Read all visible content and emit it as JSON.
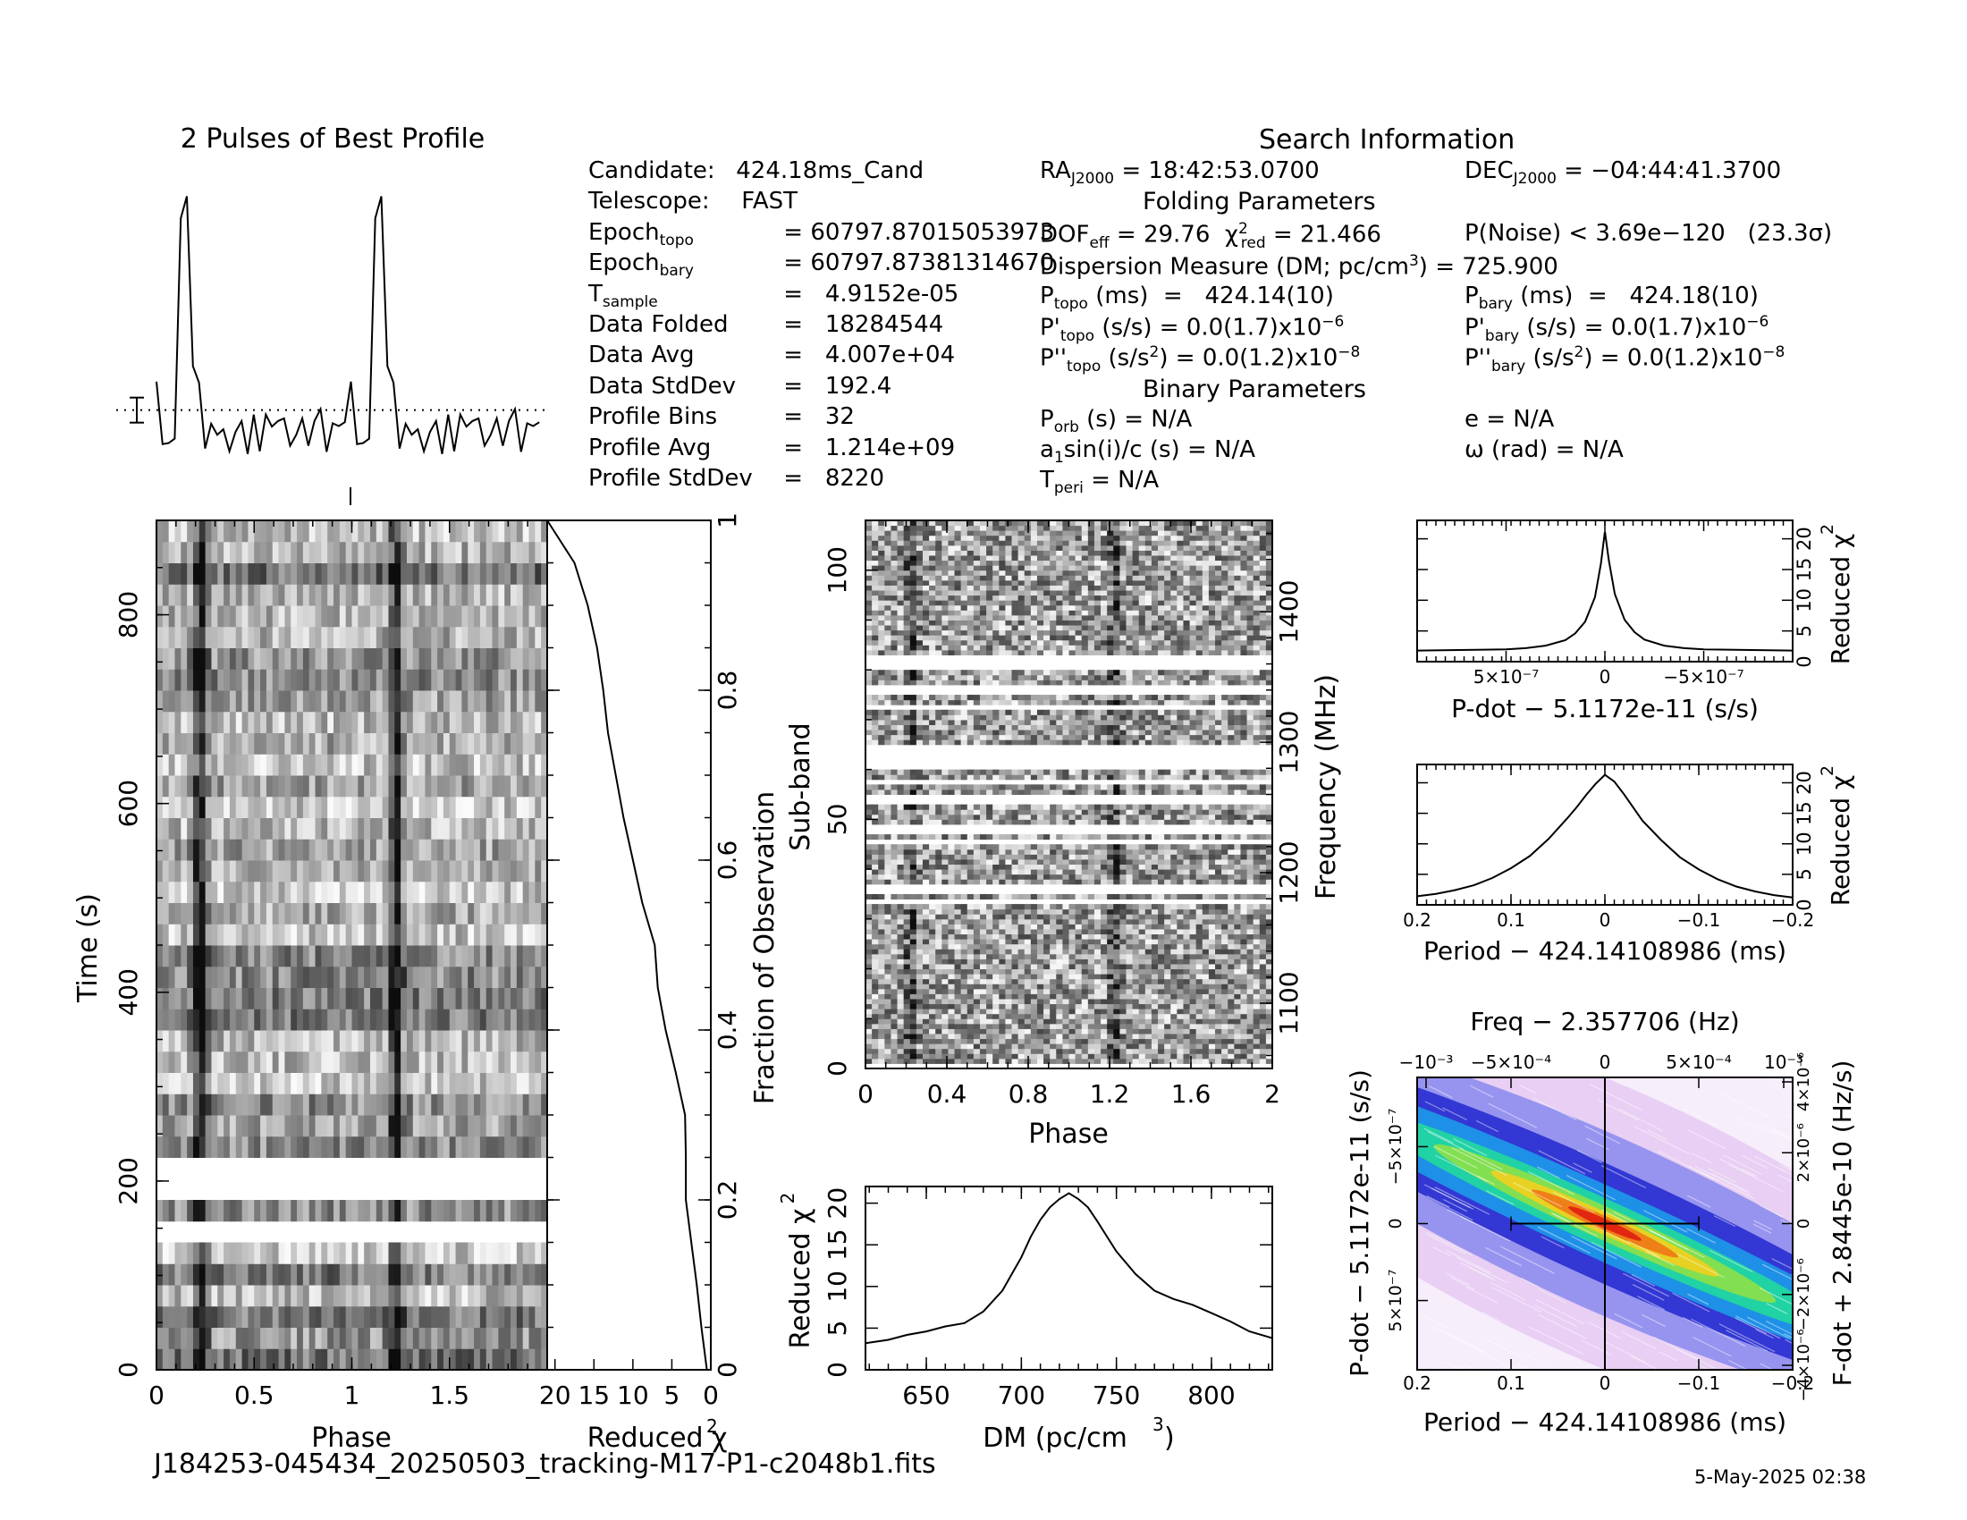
{
  "figure": {
    "footer_file": "J184253-045434_20250503_tracking-M17-P1-c2048b1.fits",
    "footer_date": "5-May-2025 02:38"
  },
  "info": {
    "search_title": "Search Information",
    "folding_title": "Folding Parameters",
    "binary_title": "Binary Parameters",
    "col1": [
      {
        "label": "Candidate:",
        "value": "424.18ms_Cand"
      },
      {
        "label": "Telescope:",
        "value": "FAST"
      },
      {
        "label": "Epoch",
        "sub": "topo",
        "value": "= 60797.87015053973"
      },
      {
        "label": "Epoch",
        "sub": "bary",
        "value": "= 60797.87381314670"
      },
      {
        "label": "T",
        "sub": "sample",
        "value": "=   4.9152e-05"
      },
      {
        "label": "Data Folded",
        "value": "=   18284544"
      },
      {
        "label": "Data Avg",
        "value": "=   4.007e+04"
      },
      {
        "label": "Data StdDev",
        "value": "=   192.4"
      },
      {
        "label": "Profile Bins",
        "value": "=   32"
      },
      {
        "label": "Profile Avg",
        "value": "=   1.214e+09"
      },
      {
        "label": "Profile StdDev",
        "value": "=   8220"
      }
    ],
    "ra": "= 18:42:53.0700",
    "dec": "= −04:44:41.3700",
    "dof_eff": "= 29.76",
    "chi2_red": "= 21.466",
    "p_noise": "P(Noise) < 3.69e−120   (23.3σ)",
    "dm_line": "Dispersion Measure (DM; pc/cm",
    "dm_value": ") = 725.900",
    "p_topo": "(ms)  =   424.14(10)",
    "p_bary": "(ms)  =   424.18(10)",
    "pd_topo": "(s/s) = 0.0(1.7)x10",
    "pd_bary": "(s/s) = 0.0(1.7)x10",
    "pdd_topo": "= 0.0(1.2)x10",
    "pdd_bary": "= 0.0(1.2)x10",
    "exp_pd": "−6",
    "exp_pdd": "−8",
    "p_orb": "(s) = N/A",
    "a1sini": "sin(i)/c (s) = N/A",
    "t_peri": "= N/A",
    "ecc": "e = N/A",
    "omega": "ω (rad) = N/A"
  },
  "chart_data": [
    {
      "id": "profile",
      "type": "line",
      "title": "2 Pulses of Best Profile",
      "x": [
        0.0,
        0.03125,
        0.0625,
        0.09375,
        0.125,
        0.15625,
        0.1875,
        0.21875,
        0.25,
        0.28125,
        0.3125,
        0.34375,
        0.375,
        0.40625,
        0.4375,
        0.46875,
        0.5,
        0.53125,
        0.5625,
        0.59375,
        0.625,
        0.65625,
        0.6875,
        0.71875,
        0.75,
        0.78125,
        0.8125,
        0.84375,
        0.875,
        0.90625,
        0.9375,
        0.96875
      ],
      "values": [
        1.22,
        0.08,
        0.1,
        0.18,
        4.2,
        4.6,
        1.5,
        1.2,
        0.0,
        0.45,
        0.25,
        0.35,
        -0.05,
        0.3,
        0.5,
        -0.1,
        0.62,
        -0.05,
        0.62,
        0.4,
        0.5,
        0.55,
        0.05,
        0.25,
        0.55,
        0.05,
        0.5,
        0.72,
        -0.06,
        0.46,
        0.41,
        0.48
      ],
      "mean_level": 0.7,
      "ylim": [
        -0.3,
        5.0
      ]
    },
    {
      "id": "time_phase",
      "type": "heatmap",
      "xlabel": "Phase",
      "ylabel": "Time (s)",
      "y2label": "Fraction of Observation",
      "xticks": [
        "0",
        "0.5",
        "1",
        "1.5"
      ],
      "yticks": [
        "0",
        "200",
        "400",
        "600",
        "800"
      ],
      "y2ticks": [
        "0",
        "0.2",
        "0.4",
        "0.6",
        "0.8",
        "1"
      ],
      "xlim": [
        0,
        2
      ],
      "ylim": [
        0,
        900
      ],
      "nx": 64,
      "ny": 40,
      "pulse_phase": 0.21,
      "blank_rows": [
        6,
        8,
        9
      ],
      "seed": 17
    },
    {
      "id": "time_chi2",
      "type": "line",
      "xlabel": "Reduced χ",
      "xticks": [
        "20",
        "15",
        "10",
        "5",
        "0"
      ],
      "xlim": [
        21,
        0
      ],
      "ylim": [
        0,
        1
      ],
      "fraction": [
        0.0,
        0.05,
        0.1,
        0.15,
        0.2,
        0.25,
        0.3,
        0.35,
        0.4,
        0.45,
        0.5,
        0.55,
        0.6,
        0.65,
        0.7,
        0.75,
        0.8,
        0.85,
        0.9,
        0.95,
        0.98,
        1.0
      ],
      "values": [
        0.5,
        1.2,
        1.8,
        2.5,
        3.2,
        3.2,
        3.3,
        4.5,
        5.8,
        6.8,
        7.2,
        8.8,
        10.0,
        11.2,
        12.2,
        13.2,
        13.8,
        14.6,
        15.8,
        17.5,
        19.6,
        21.0
      ]
    },
    {
      "id": "subband_phase",
      "type": "heatmap",
      "xlabel": "Phase",
      "ylabel": "Sub-band",
      "y2label": "Frequency (MHz)",
      "xticks": [
        "0",
        "0.4",
        "0.8",
        "1.2",
        "1.6",
        "2"
      ],
      "yticks": [
        "0",
        "50",
        "100"
      ],
      "y2ticks": [
        "1100",
        "1200",
        "1300",
        "1400"
      ],
      "xlim": [
        0,
        2
      ],
      "ylim": [
        0,
        110
      ],
      "nx": 64,
      "ny": 110,
      "pulse_phase": 0.21,
      "blank_rows": [
        0,
        33,
        35,
        36,
        45,
        47,
        48,
        53,
        54,
        57,
        60,
        61,
        62,
        63,
        64,
        72,
        75,
        76,
        80,
        81,
        82
      ],
      "seed": 29
    },
    {
      "id": "dm_curve",
      "type": "line",
      "xlabel": "DM (pc/cm",
      "ylabel": "Reduced χ",
      "xticks": [
        "650",
        "700",
        "750",
        "800"
      ],
      "yticks": [
        "0",
        "5",
        "10",
        "15",
        "20"
      ],
      "xlim": [
        618,
        832
      ],
      "ylim": [
        0,
        22
      ],
      "x": [
        618,
        630,
        640,
        650,
        660,
        670,
        680,
        690,
        700,
        705,
        710,
        715,
        720,
        725,
        730,
        735,
        740,
        745,
        750,
        760,
        770,
        780,
        790,
        800,
        810,
        820,
        832
      ],
      "values": [
        3.2,
        3.6,
        4.2,
        4.6,
        5.2,
        5.6,
        7.0,
        9.5,
        13.5,
        16.0,
        18.0,
        19.5,
        20.5,
        21.2,
        20.5,
        19.5,
        17.8,
        16.0,
        14.2,
        11.5,
        9.5,
        8.5,
        7.8,
        6.8,
        5.8,
        4.6,
        3.8
      ]
    },
    {
      "id": "pdot_curve",
      "type": "line",
      "xlabel": "P-dot − 5.1172e-11 (s/s)",
      "ylabel": "Reduced χ",
      "xticks": [
        "5×10⁻⁷",
        "0",
        "−5×10⁻⁷"
      ],
      "xtick_values": [
        5e-07,
        0,
        -5e-07
      ],
      "yticks": [
        "0",
        "5",
        "10",
        "15",
        "20"
      ],
      "xlim": [
        9.5e-07,
        -9.5e-07
      ],
      "ylim": [
        0,
        23
      ],
      "x": [
        9.5e-07,
        7e-07,
        5e-07,
        4e-07,
        3e-07,
        2e-07,
        1.5e-07,
        1e-07,
        5e-08,
        2e-08,
        0,
        -2e-08,
        -5e-08,
        -1e-07,
        -1.5e-07,
        -2e-07,
        -3e-07,
        -4e-07,
        -5e-07,
        -7e-07,
        -9.5e-07
      ],
      "values": [
        1.8,
        1.9,
        2.0,
        2.2,
        2.6,
        3.5,
        4.6,
        6.5,
        10.5,
        16.0,
        21.2,
        16.5,
        11.0,
        6.8,
        4.8,
        3.6,
        2.6,
        2.2,
        2.0,
        1.9,
        1.8
      ]
    },
    {
      "id": "period_curve",
      "type": "line",
      "xlabel": "Period − 424.14108986 (ms)",
      "ylabel": "Reduced χ",
      "xticks": [
        "0.2",
        "0.1",
        "0",
        "−0.1",
        "−0.2"
      ],
      "xtick_values": [
        0.2,
        0.1,
        0,
        -0.1,
        -0.2
      ],
      "yticks": [
        "0",
        "5",
        "10",
        "15",
        "20"
      ],
      "xlim": [
        0.2,
        -0.2
      ],
      "ylim": [
        0,
        23
      ],
      "x": [
        0.2,
        0.18,
        0.16,
        0.14,
        0.12,
        0.1,
        0.08,
        0.06,
        0.04,
        0.03,
        0.02,
        0.01,
        0.0,
        -0.01,
        -0.02,
        -0.03,
        -0.04,
        -0.06,
        -0.08,
        -0.1,
        -0.12,
        -0.14,
        -0.16,
        -0.18,
        -0.2
      ],
      "values": [
        1.4,
        1.8,
        2.4,
        3.2,
        4.4,
        6.0,
        8.0,
        10.8,
        14.2,
        16.0,
        18.0,
        19.8,
        21.3,
        20.2,
        18.2,
        16.0,
        13.8,
        10.6,
        7.8,
        5.8,
        4.2,
        3.0,
        2.2,
        1.6,
        1.2
      ]
    },
    {
      "id": "p_pdot_plane",
      "type": "heatmap",
      "title": "Freq − 2.357706 (Hz)",
      "xlabel": "Period − 424.14108986 (ms)",
      "ylabel": "P-dot − 5.1172e-11 (s/s)",
      "y2label": "F-dot + 2.8445e-10 (Hz/s)",
      "xticks": [
        "0.2",
        "0.1",
        "0",
        "−0.1",
        "−0.2"
      ],
      "x2ticks": [
        "−10⁻³",
        "−5×10⁻⁴",
        "0",
        "5×10⁻⁴",
        "10⁻³"
      ],
      "yticks": [
        "−5×10⁻⁷",
        "0",
        "5×10⁻⁷"
      ],
      "y2ticks": [
        "4×10⁻⁶",
        "2×10⁻⁶",
        "0",
        "−2×10⁻⁶",
        "−4×10⁻⁶"
      ],
      "xlim": [
        0.2,
        -0.2
      ],
      "ylim": [
        9.5e-07,
        -9.5e-07
      ],
      "error_bar_x": [
        0.1,
        -0.1
      ],
      "peak": [
        0,
        0
      ]
    }
  ]
}
